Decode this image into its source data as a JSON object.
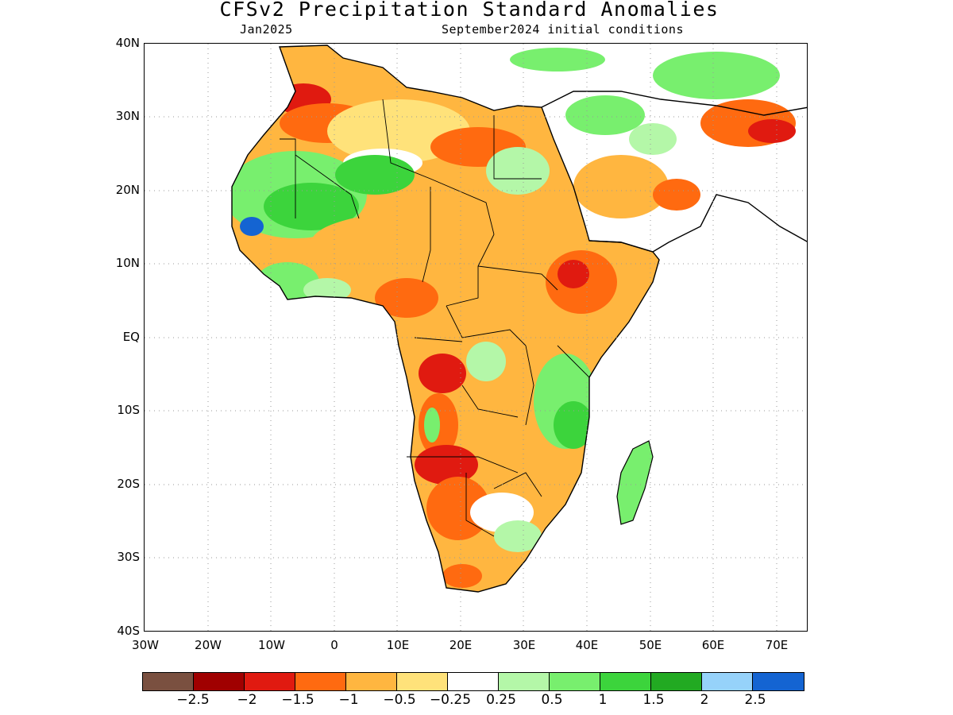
{
  "map": {
    "title": "CFSv2 Precipitation Standard Anomalies",
    "valid_month": "Jan2025",
    "initial_conditions": "September2024 initial conditions",
    "lat_labels": [
      "40N",
      "30N",
      "20N",
      "10N",
      "EQ",
      "10S",
      "20S",
      "30S",
      "40S"
    ],
    "lon_labels": [
      "30W",
      "20W",
      "10W",
      "0",
      "10E",
      "20E",
      "30E",
      "40E",
      "50E",
      "60E",
      "70E"
    ],
    "lat_range": [
      -40,
      40
    ],
    "lon_range": [
      -30,
      75
    ],
    "grid": true
  },
  "legend": {
    "colors": [
      "#7a5040",
      "#a00000",
      "#e01a10",
      "#ff6a10",
      "#ffb640",
      "#ffe27a",
      "#ffffff",
      "#b4f7a8",
      "#78ef6e",
      "#3cd43c",
      "#22aa22",
      "#96d2fa",
      "#1464d2"
    ],
    "labels": [
      "−2.5",
      "−2",
      "−1.5",
      "−1",
      "−0.5",
      "−0.25",
      "0.25",
      "0.5",
      "1",
      "1.5",
      "2",
      "2.5"
    ]
  }
}
